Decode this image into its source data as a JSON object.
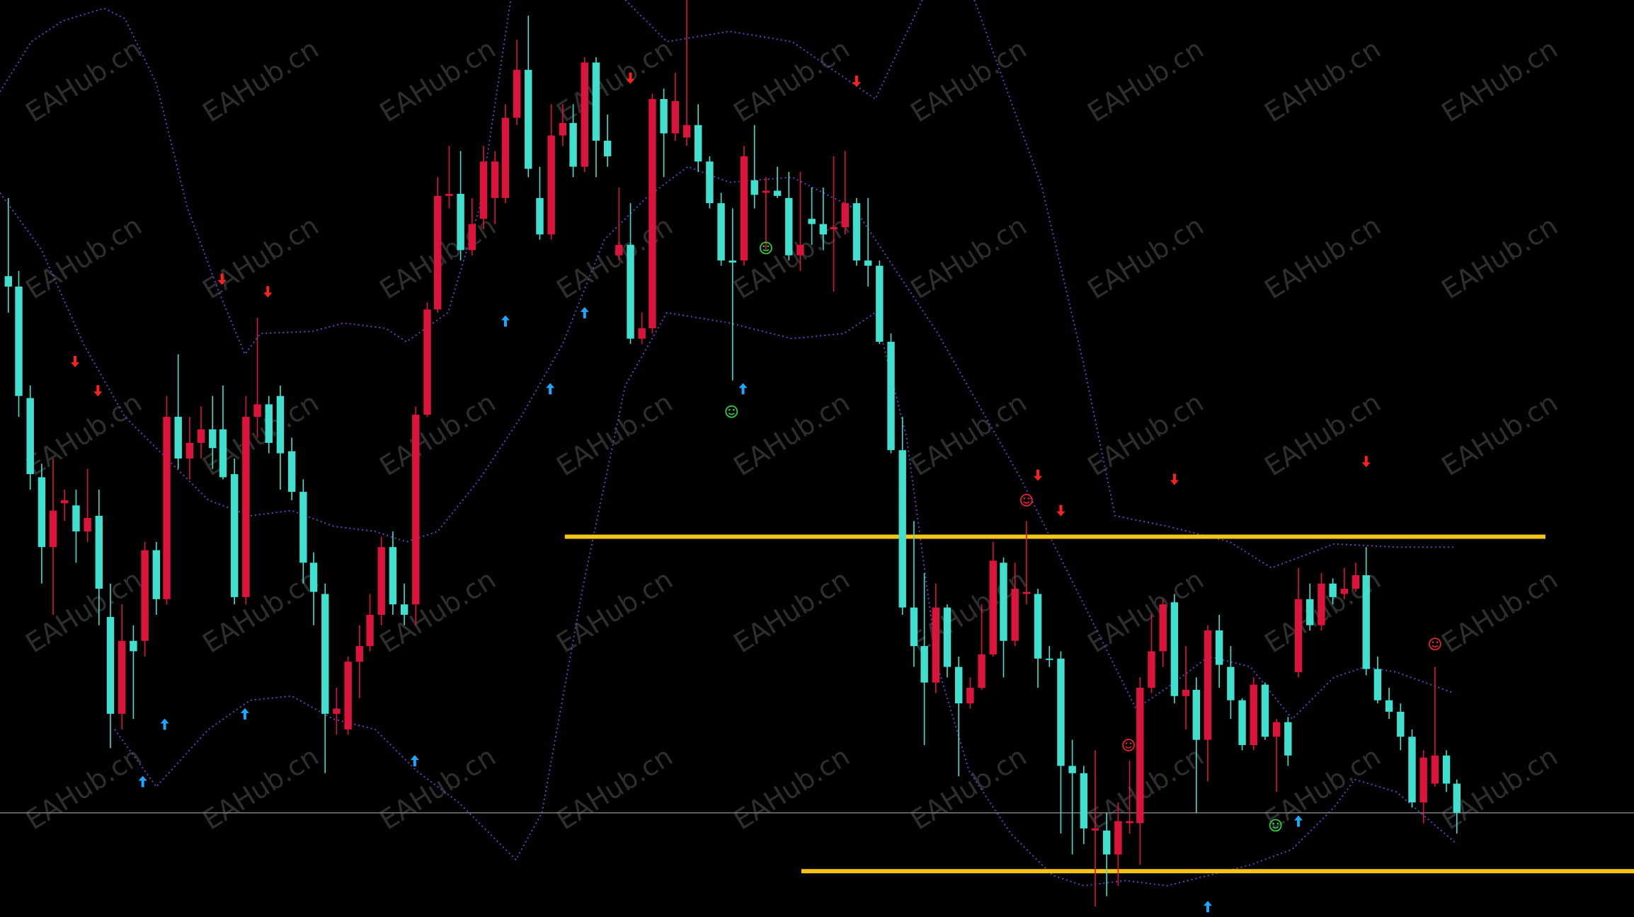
{
  "chart_data": {
    "type": "candlestick",
    "x": [
      8,
      18,
      29,
      40,
      51,
      62,
      73,
      84,
      95,
      106,
      117,
      128,
      139,
      150,
      160,
      171,
      182,
      193,
      204,
      214,
      225,
      236,
      247,
      258,
      269,
      280,
      291,
      301,
      312,
      323,
      334,
      345,
      355,
      366,
      377,
      388,
      399,
      410,
      420,
      431,
      442,
      453,
      464,
      475,
      485,
      496,
      507,
      518,
      529,
      540,
      550,
      561,
      572,
      583,
      594,
      605,
      616,
      626,
      637,
      648,
      659,
      670,
      681,
      692,
      703,
      714,
      724,
      735,
      746,
      757,
      768,
      779,
      790,
      800,
      811,
      822,
      833,
      844,
      855,
      866,
      877,
      887,
      898,
      909,
      920,
      931,
      942,
      953,
      963,
      974,
      985,
      996,
      1007,
      1018,
      1029,
      1040,
      1051,
      1062,
      1073,
      1084,
      1094,
      1105,
      1116,
      1127,
      1138,
      1148,
      1159,
      1170,
      1181,
      1192,
      1203,
      1214,
      1225,
      1236,
      1246,
      1257,
      1268,
      1279,
      1290,
      1301,
      1311,
      1322,
      1333,
      1344,
      1355,
      1366,
      1377,
      1388,
      1398
    ],
    "open": [
      615,
      605,
      498,
      422,
      355,
      397,
      395,
      370,
      385,
      288,
      195,
      265,
      265,
      352,
      305,
      480,
      440,
      455,
      468,
      468,
      425,
      307,
      480,
      492,
      500,
      447,
      408,
      340,
      310,
      195,
      180,
      245,
      260,
      290,
      355,
      300,
      300,
      482,
      583,
      692,
      694,
      640,
      670,
      690,
      690,
      767,
      813,
      690,
      655,
      750,
      762,
      720,
      820,
      745,
      635,
      645,
      555,
      565,
      785,
      752,
      748,
      760,
      725,
      685,
      630,
      630,
      707,
      695,
      697,
      690,
      635,
      670,
      665,
      660,
      662,
      685,
      630,
      625,
      552,
      448,
      297,
      260,
      225,
      297,
      240,
      205,
      220,
      252,
      340,
      265,
      310,
      310,
      248,
      248,
      145,
      138,
      83,
      83,
      60,
      90,
      90,
      220,
      255,
      302,
      212,
      218,
      170,
      275,
      240,
      208,
      165,
      223,
      173,
      187,
      235,
      305,
      280,
      320,
      310,
      315,
      328,
      238,
      208,
      197,
      173,
      110,
      128,
      155,
      128
    ],
    "high": [
      690,
      620,
      510,
      435,
      440,
      410,
      410,
      430,
      410,
      320,
      300,
      280,
      360,
      360,
      500,
      540,
      480,
      490,
      500,
      510,
      440,
      500,
      575,
      500,
      510,
      460,
      420,
      350,
      320,
      220,
      250,
      280,
      310,
      365,
      370,
      320,
      490,
      590,
      710,
      740,
      735,
      690,
      740,
      735,
      780,
      842,
      865,
      720,
      780,
      780,
      780,
      825,
      825,
      770,
      700,
      685,
      580,
      790,
      795,
      810,
      880,
      780,
      730,
      695,
      680,
      740,
      760,
      710,
      720,
      715,
      715,
      700,
      700,
      730,
      735,
      690,
      690,
      630,
      560,
      480,
      380,
      330,
      320,
      300,
      250,
      230,
      300,
      360,
      345,
      340,
      380,
      315,
      260,
      255,
      170,
      145,
      160,
      100,
      110,
      150,
      230,
      290,
      305,
      310,
      260,
      230,
      280,
      290,
      260,
      210,
      230,
      225,
      190,
      192,
      335,
      320,
      330,
      325,
      335,
      340,
      355,
      250,
      220,
      205,
      180,
      160,
      240,
      160,
      132
    ],
    "low": [
      580,
      480,
      410,
      320,
      290,
      380,
      340,
      360,
      280,
      162,
      180,
      190,
      250,
      290,
      300,
      430,
      420,
      440,
      430,
      420,
      300,
      300,
      460,
      445,
      410,
      400,
      320,
      280,
      138,
      175,
      175,
      210,
      255,
      280,
      290,
      280,
      280,
      480,
      580,
      680,
      630,
      635,
      660,
      665,
      685,
      760,
      710,
      650,
      650,
      740,
      710,
      715,
      710,
      720,
      630,
      550,
      550,
      560,
      710,
      745,
      740,
      715,
      680,
      625,
      515,
      625,
      680,
      640,
      690,
      630,
      620,
      645,
      640,
      600,
      655,
      625,
      605,
      550,
      445,
      290,
      240,
      165,
      215,
      230,
      135,
      200,
      218,
      250,
      230,
      260,
      300,
      220,
      240,
      80,
      60,
      70,
      10,
      20,
      30,
      80,
      50,
      215,
      240,
      205,
      180,
      100,
      130,
      220,
      190,
      160,
      160,
      170,
      120,
      145,
      230,
      275,
      275,
      300,
      305,
      312,
      232,
      205,
      190,
      160,
      105,
      90,
      125,
      120,
      80
    ],
    "close": [
      605,
      500,
      425,
      355,
      390,
      400,
      370,
      383,
      315,
      195,
      265,
      255,
      352,
      305,
      480,
      440,
      455,
      468,
      450,
      422,
      307,
      480,
      492,
      455,
      445,
      408,
      340,
      312,
      195,
      200,
      245,
      260,
      290,
      355,
      300,
      290,
      482,
      583,
      692,
      694,
      640,
      665,
      725,
      725,
      767,
      813,
      718,
      655,
      750,
      762,
      720,
      820,
      745,
      730,
      645,
      555,
      565,
      785,
      752,
      783,
      760,
      725,
      685,
      630,
      628,
      730,
      693,
      697,
      692,
      635,
      645,
      665,
      655,
      662,
      685,
      630,
      625,
      552,
      448,
      297,
      260,
      225,
      297,
      240,
      205,
      220,
      252,
      342,
      265,
      315,
      312,
      248,
      247,
      145,
      138,
      85,
      85,
      60,
      92,
      92,
      220,
      255,
      300,
      212,
      218,
      170,
      275,
      242,
      208,
      165,
      223,
      173,
      187,
      155,
      305,
      280,
      320,
      307,
      315,
      328,
      238,
      208,
      197,
      173,
      110,
      153,
      155,
      128,
      100
    ],
    "up_color": "#dc143c",
    "down_color": "#40e0d0",
    "xlim": [
      0,
      1568
    ],
    "ylim": [
      0,
      880
    ],
    "bands": [
      {
        "color": "#6a3dbb",
        "x": [
          0,
          30,
          60,
          100,
          120,
          150,
          180,
          210,
          235,
          250,
          300,
          330,
          370,
          390,
          430,
          460,
          490,
          545,
          600,
          640,
          700,
          760,
          840,
          885,
          910,
          935,
          1000,
          1040,
          1070,
          1120,
          1180,
          1220,
          1280,
          1340,
          1395
        ],
        "values": [
          792,
          840,
          860,
          872,
          862,
          800,
          680,
          600,
          540,
          560,
          562,
          570,
          565,
          552,
          580,
          680,
          880,
          null,
          880,
          840,
          850,
          840,
          785,
          880,
          null,
          880,
          700,
          530,
          385,
          375,
          360,
          335,
          358,
          355,
          355
        ]
      },
      {
        "color": "#6a3dbb",
        "x": [
          0,
          40,
          80,
          120,
          160,
          200,
          240,
          280,
          320,
          360,
          390,
          420,
          460,
          500,
          540,
          580,
          620,
          660,
          700,
          760,
          820,
          860,
          900,
          940,
          980,
          1020,
          1060,
          1090,
          1120,
          1160,
          1200,
          1240,
          1280,
          1310,
          1340,
          1395
        ],
        "values": [
          695,
          640,
          550,
          480,
          440,
          400,
          385,
          390,
          375,
          370,
          360,
          370,
          420,
          480,
          550,
          650,
          690,
          720,
          705,
          710,
          680,
          620,
          560,
          490,
          420,
          340,
          260,
          200,
          220,
          250,
          240,
          190,
          230,
          240,
          235,
          215
        ]
      },
      {
        "color": "#6a3dbb",
        "x": [
          110,
          150,
          200,
          240,
          280,
          320,
          360,
          400,
          440,
          495,
          520,
          560,
          600,
          640,
          700,
          760,
          810,
          840,
          870,
          900,
          930,
          970,
          1010,
          1040,
          1080,
          1120,
          1160,
          1200,
          1240,
          1280,
          1300,
          1340,
          1398
        ],
        "values": [
          180,
          125,
          180,
          208,
          212,
          190,
          180,
          140,
          110,
          55,
          100,
          320,
          510,
          580,
          570,
          555,
          560,
          580,
          460,
          240,
          140,
          80,
          40,
          30,
          35,
          30,
          40,
          50,
          65,
          105,
          132,
          120,
          70
        ]
      }
    ],
    "levels": [
      {
        "color": "#f5c518",
        "x": [
          542,
          1483
        ],
        "value": 365
      },
      {
        "color": "#f5c518",
        "x": [
          769,
          1568
        ],
        "value": 44
      },
      {
        "color": "#7a7a7a",
        "x": [
          0,
          1568
        ],
        "value": 100
      }
    ],
    "signals": [
      {
        "kind": "down",
        "color": "#ff2020",
        "x": [
          72,
          94,
          213,
          257,
          605,
          822,
          996,
          1018,
          1127,
          1311
        ],
        "values": [
          533,
          505,
          612,
          600,
          805,
          802,
          424,
          390,
          420,
          437
        ]
      },
      {
        "kind": "up",
        "color": "#1ea7ff",
        "x": [
          137,
          158,
          235,
          398,
          485,
          528,
          561,
          713,
          1159,
          1246
        ],
        "values": [
          130,
          185,
          195,
          150,
          572,
          507,
          580,
          507,
          10,
          92
        ]
      },
      {
        "kind": "smile",
        "color": "#2ecc40",
        "x": [
          735,
          702,
          1224
        ],
        "values": [
          642,
          485,
          88
        ]
      },
      {
        "kind": "smile",
        "color": "#e0242c",
        "x": [
          985,
          1083,
          1377
        ],
        "values": [
          400,
          165,
          262
        ]
      }
    ]
  },
  "watermark": "EAHub.cn"
}
